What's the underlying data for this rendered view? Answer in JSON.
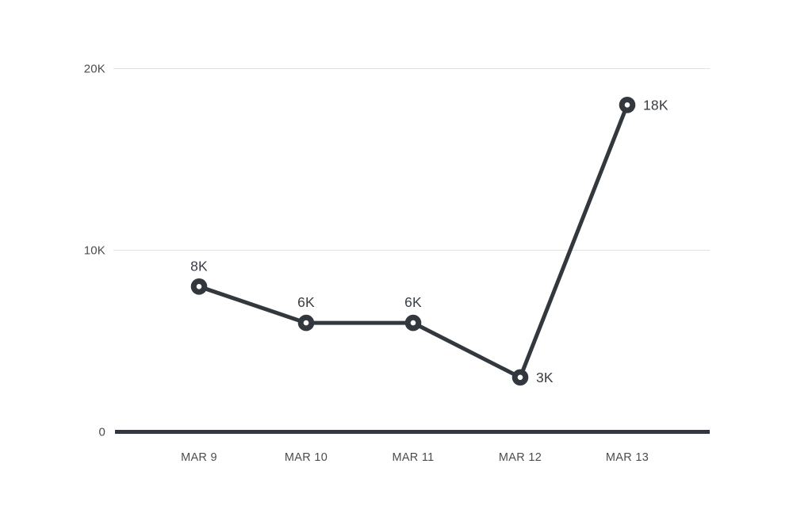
{
  "page": {
    "background": "#ffffff"
  },
  "chart_data": {
    "type": "line",
    "title": "",
    "xlabel": "",
    "ylabel": "",
    "legend": "none",
    "grid": "horizontal",
    "categories": [
      "MAR 9",
      "MAR 10",
      "MAR 11",
      "MAR 12",
      "MAR 13"
    ],
    "values": [
      8000,
      6000,
      6000,
      3000,
      18000
    ],
    "point_labels": [
      "8K",
      "6K",
      "6K",
      "3K",
      "18K"
    ],
    "point_label_positions": [
      "top",
      "top",
      "top",
      "right",
      "right"
    ],
    "y_ticks": [
      {
        "value": 0,
        "label": "0",
        "gridline": false
      },
      {
        "value": 10000,
        "label": "10K",
        "gridline": true
      },
      {
        "value": 20000,
        "label": "20K",
        "gridline": true
      }
    ],
    "ylim": [
      0,
      20000
    ],
    "colors": {
      "line": "#32383e",
      "marker_ring": "#32383e",
      "marker_fill": "#ffffff",
      "axis_line": "#32383e",
      "gridline": "#e0e0e0",
      "tick_label": "#4a4c4f",
      "point_label": "#383d43",
      "background": "#ffffff"
    }
  }
}
